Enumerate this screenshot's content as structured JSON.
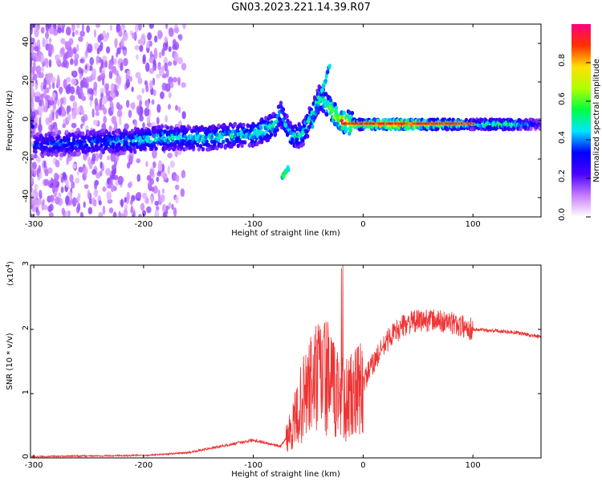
{
  "title": "GN03.2023.221.14.39.R07",
  "chart_data": [
    {
      "type": "heatmap",
      "xlabel": "Height of straight line (km)",
      "ylabel": "Frequency (Hz)",
      "xlim": [
        -303,
        162
      ],
      "ylim": [
        -50,
        50
      ],
      "x_ticks": [
        "-300",
        "-200",
        "-100",
        "0",
        "100"
      ],
      "x_tick_values": [
        -300,
        -200,
        -100,
        0,
        100
      ],
      "y_ticks": [
        "40",
        "20",
        "0",
        "-20",
        "-40"
      ],
      "y_tick_values": [
        40,
        20,
        0,
        -20,
        -40
      ],
      "colorbar": {
        "label": "Normalized spectral amplitude",
        "range": [
          0,
          1
        ],
        "ticks": [
          "0.0",
          "0.2",
          "0.4",
          "0.6",
          "0.8"
        ],
        "tick_values": [
          0.0,
          0.2,
          0.4,
          0.6,
          0.8
        ],
        "colors": [
          "#ffffff",
          "#c77dff",
          "#4b00ff",
          "#0000ff",
          "#00e5ff",
          "#00ff40",
          "#b0ff00",
          "#ffe000",
          "#ff3000",
          "#ff0080"
        ]
      },
      "ridge_points": [
        [
          -300,
          -13,
          0.35
        ],
        [
          -280,
          -12,
          0.4
        ],
        [
          -260,
          -12,
          0.38
        ],
        [
          -240,
          -11,
          0.4
        ],
        [
          -220,
          -11,
          0.45
        ],
        [
          -200,
          -10,
          0.48
        ],
        [
          -180,
          -9,
          0.5
        ],
        [
          -160,
          -9,
          0.48
        ],
        [
          -140,
          -9,
          0.5
        ],
        [
          -120,
          -8,
          0.52
        ],
        [
          -100,
          -7,
          0.5
        ],
        [
          -90,
          -5,
          0.55
        ],
        [
          -80,
          -2,
          0.55
        ],
        [
          -75,
          4,
          0.5
        ],
        [
          -72,
          -27,
          0.45
        ],
        [
          -65,
          -9,
          0.5
        ],
        [
          -55,
          -7,
          0.5
        ],
        [
          -45,
          5,
          0.55
        ],
        [
          -40,
          12,
          0.5
        ],
        [
          -35,
          22,
          0.45
        ],
        [
          -32,
          30,
          0.3
        ],
        [
          -30,
          -1,
          0.6
        ],
        [
          -20,
          0,
          0.85
        ],
        [
          -10,
          -2,
          0.8
        ],
        [
          0,
          -2,
          0.7
        ],
        [
          20,
          -2,
          0.95
        ],
        [
          40,
          -2,
          0.95
        ],
        [
          60,
          -2,
          0.75
        ],
        [
          80,
          -2,
          0.7
        ],
        [
          100,
          -2,
          0.5
        ],
        [
          120,
          -2,
          0.6
        ],
        [
          140,
          -2,
          0.55
        ],
        [
          160,
          -2,
          0.3
        ]
      ]
    },
    {
      "type": "line",
      "xlabel": "Height of straight line (km)",
      "ylabel": "SNR (10 * v/v)",
      "y_multiplier": "(x10",
      "y_multiplier_exp": "4",
      "y_multiplier_close": ")",
      "xlim": [
        -303,
        162
      ],
      "ylim": [
        0,
        3
      ],
      "x_ticks": [
        "-300",
        "-200",
        "-100",
        "0",
        "100"
      ],
      "x_tick_values": [
        -300,
        -200,
        -100,
        0,
        100
      ],
      "y_ticks": [
        "3",
        "2",
        "1",
        "0"
      ],
      "y_tick_values": [
        3,
        2,
        1,
        0
      ],
      "color": "#ee3333",
      "envelope": [
        [
          -303,
          0.02
        ],
        [
          -250,
          0.03
        ],
        [
          -200,
          0.04
        ],
        [
          -160,
          0.08
        ],
        [
          -130,
          0.18
        ],
        [
          -100,
          0.28
        ],
        [
          -85,
          0.22
        ],
        [
          -75,
          0.18
        ],
        [
          -65,
          0.45
        ],
        [
          -55,
          0.9
        ],
        [
          -45,
          1.2
        ],
        [
          -35,
          1.3
        ],
        [
          -25,
          1.0
        ],
        [
          -15,
          0.9
        ],
        [
          -5,
          1.0
        ],
        [
          10,
          1.5
        ],
        [
          25,
          1.9
        ],
        [
          40,
          2.1
        ],
        [
          60,
          2.15
        ],
        [
          80,
          2.1
        ],
        [
          100,
          2.0
        ],
        [
          120,
          1.98
        ],
        [
          140,
          1.95
        ],
        [
          162,
          1.88
        ]
      ]
    }
  ]
}
